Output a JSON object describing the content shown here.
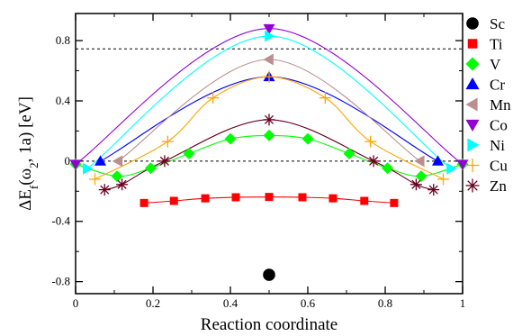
{
  "chart_data": {
    "type": "line",
    "title": "",
    "xlabel": "Reaction coordinate",
    "ylabel": "ΔE_f(ω_2, 1a) [eV]",
    "xlim": [
      0,
      1
    ],
    "ylim": [
      -0.88,
      0.98
    ],
    "x_ticks": [
      0,
      0.2,
      0.4,
      0.6,
      0.8,
      1
    ],
    "x_tick_labels": [
      "0",
      "0.2",
      "0.4",
      "0.6",
      "0.8",
      "1"
    ],
    "y_ticks": [
      -0.8,
      -0.4,
      0,
      0.4,
      0.8
    ],
    "y_tick_labels": [
      "-0.8",
      "-0.4",
      "0",
      "0.4",
      "0.8"
    ],
    "grid": false,
    "legend_placement": "right",
    "reference_lines": [
      0,
      0.745
    ],
    "series": [
      {
        "name": "Sc",
        "marker": "circle",
        "color": "#000000",
        "curve": false,
        "x": [
          0.5
        ],
        "y": [
          -0.755
        ]
      },
      {
        "name": "Ti",
        "marker": "square",
        "color": "#ff0000",
        "curve": true,
        "x": [
          0.177,
          0.254,
          0.335,
          0.414,
          0.5,
          0.586,
          0.665,
          0.746,
          0.823
        ],
        "y": [
          -0.278,
          -0.264,
          -0.247,
          -0.24,
          -0.238,
          -0.24,
          -0.247,
          -0.264,
          -0.278
        ]
      },
      {
        "name": "V",
        "marker": "diamond",
        "color": "#00ff00",
        "curve": true,
        "x": [
          0.0,
          0.107,
          0.194,
          0.293,
          0.4,
          0.5,
          0.6,
          0.707,
          0.806,
          0.893,
          1.0
        ],
        "y": [
          -0.02,
          -0.1,
          -0.047,
          0.05,
          0.148,
          0.17,
          0.148,
          0.05,
          -0.047,
          -0.1,
          -0.02
        ]
      },
      {
        "name": "Cr",
        "marker": "triangle-up",
        "color": "#0000ff",
        "curve": true,
        "x": [
          0.064,
          0.5,
          0.936
        ],
        "y": [
          0.0,
          0.56,
          0.0
        ]
      },
      {
        "name": "Mn",
        "marker": "triangle-left",
        "color": "#bc8f8f",
        "curve": true,
        "x": [
          0.11,
          0.5,
          0.89
        ],
        "y": [
          0.0,
          0.675,
          0.0
        ]
      },
      {
        "name": "Co",
        "marker": "triangle-down",
        "color": "#9400d3",
        "curve": true,
        "x": [
          0.0,
          0.5,
          1.0
        ],
        "y": [
          -0.02,
          0.88,
          -0.02
        ]
      },
      {
        "name": "Ni",
        "marker": "triangle-right",
        "color": "#00ffff",
        "curve": true,
        "x": [
          0.03,
          0.5,
          0.97
        ],
        "y": [
          -0.05,
          0.83,
          -0.05
        ]
      },
      {
        "name": "Cu",
        "marker": "plus",
        "color": "#ffa500",
        "curve": true,
        "x": [
          0.05,
          0.238,
          0.355,
          0.5,
          0.645,
          0.762,
          0.95
        ],
        "y": [
          -0.12,
          0.13,
          0.42,
          0.56,
          0.42,
          0.13,
          -0.12
        ]
      },
      {
        "name": "Zn",
        "marker": "asterisk",
        "color": "#67001f",
        "curve": true,
        "x": [
          0.075,
          0.12,
          0.23,
          0.5,
          0.77,
          0.88,
          0.925
        ],
        "y": [
          -0.19,
          -0.155,
          0.0,
          0.275,
          0.0,
          -0.155,
          -0.19
        ]
      }
    ]
  }
}
